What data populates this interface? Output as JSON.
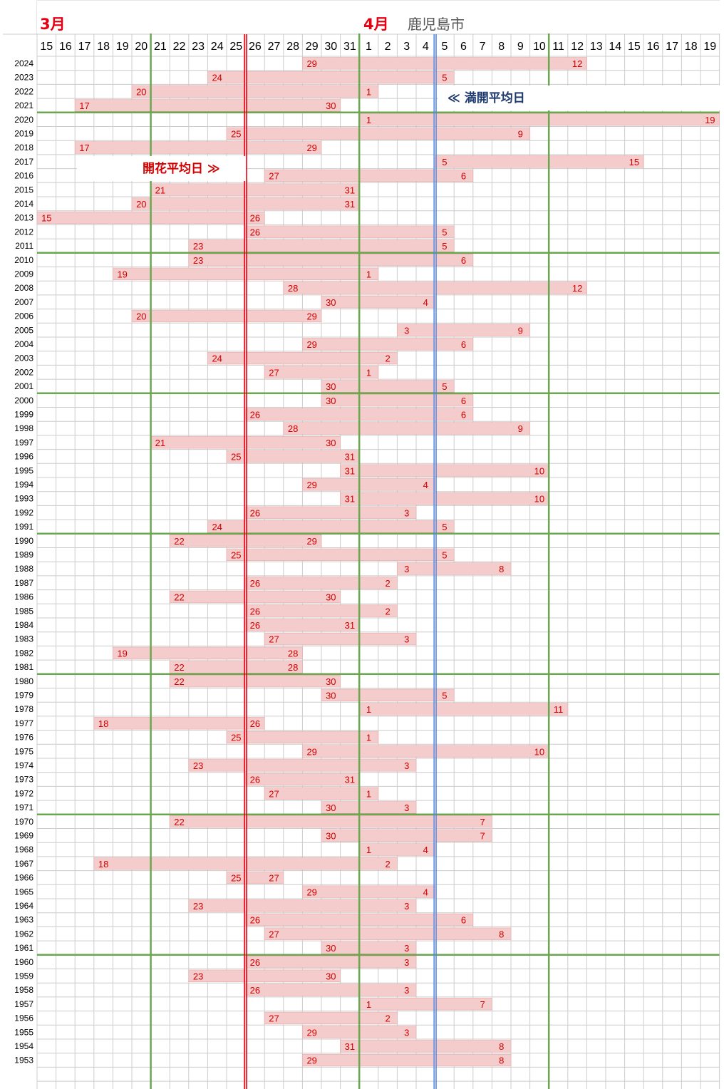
{
  "header": {
    "march_label": "3月",
    "april_label": "4月",
    "city": "鹿児島市"
  },
  "annotations": {
    "bloom_average": "開花平均日 ≫",
    "full_bloom_average": "≪ 満開平均日"
  },
  "colors": {
    "bar_fill": "#f4cccc",
    "bar_stroke": "#e8a8a8",
    "value_text": "#d00000",
    "decade_line": "#6aa84f",
    "bloom_avg_line": "#e60012",
    "full_avg_line": "#4a86e8",
    "grid": "#cccccc"
  },
  "chart_data": {
    "type": "range-bar",
    "x_axis": {
      "ticks": [
        {
          "month": "3月",
          "day": "15"
        },
        {
          "month": "3月",
          "day": "16"
        },
        {
          "month": "3月",
          "day": "17"
        },
        {
          "month": "3月",
          "day": "18"
        },
        {
          "month": "3月",
          "day": "19"
        },
        {
          "month": "3月",
          "day": "20"
        },
        {
          "month": "3月",
          "day": "21"
        },
        {
          "month": "3月",
          "day": "22"
        },
        {
          "month": "3月",
          "day": "23"
        },
        {
          "month": "3月",
          "day": "24"
        },
        {
          "month": "3月",
          "day": "25"
        },
        {
          "month": "3月",
          "day": "26"
        },
        {
          "month": "3月",
          "day": "27"
        },
        {
          "month": "3月",
          "day": "28"
        },
        {
          "month": "3月",
          "day": "29"
        },
        {
          "month": "3月",
          "day": "30"
        },
        {
          "month": "3月",
          "day": "31"
        },
        {
          "month": "4月",
          "day": "1"
        },
        {
          "month": "4月",
          "day": "2"
        },
        {
          "month": "4月",
          "day": "3"
        },
        {
          "month": "4月",
          "day": "4"
        },
        {
          "month": "4月",
          "day": "5"
        },
        {
          "month": "4月",
          "day": "6"
        },
        {
          "month": "4月",
          "day": "7"
        },
        {
          "month": "4月",
          "day": "8"
        },
        {
          "month": "4月",
          "day": "9"
        },
        {
          "month": "4月",
          "day": "10"
        },
        {
          "month": "4月",
          "day": "11"
        },
        {
          "month": "4月",
          "day": "12"
        },
        {
          "month": "4月",
          "day": "13"
        },
        {
          "month": "4月",
          "day": "14"
        },
        {
          "month": "4月",
          "day": "15"
        },
        {
          "month": "4月",
          "day": "16"
        },
        {
          "month": "4月",
          "day": "17"
        },
        {
          "month": "4月",
          "day": "18"
        },
        {
          "month": "4月",
          "day": "19"
        }
      ]
    },
    "reference_lines": {
      "bloom_average": {
        "month": 3,
        "day": 25.5
      },
      "full_bloom_average": {
        "month": 4,
        "day": 4.5
      }
    },
    "decade_lines_after_years": [
      2021,
      2011,
      2001,
      1991,
      1981,
      1971,
      1961
    ],
    "series": [
      {
        "year": "2024",
        "bloom": [
          3,
          29
        ],
        "full": [
          4,
          12
        ]
      },
      {
        "year": "2023",
        "bloom": [
          3,
          24
        ],
        "full": [
          4,
          5
        ]
      },
      {
        "year": "2022",
        "bloom": [
          3,
          20
        ],
        "full": [
          4,
          1
        ]
      },
      {
        "year": "2021",
        "bloom": [
          3,
          17
        ],
        "full": [
          3,
          30
        ]
      },
      {
        "year": "2020",
        "bloom": [
          4,
          1
        ],
        "full": [
          4,
          19
        ]
      },
      {
        "year": "2019",
        "bloom": [
          3,
          25
        ],
        "full": [
          4,
          9
        ]
      },
      {
        "year": "2018",
        "bloom": [
          3,
          17
        ],
        "full": [
          3,
          29
        ]
      },
      {
        "year": "2017",
        "bloom": [
          4,
          5
        ],
        "full": [
          4,
          15
        ]
      },
      {
        "year": "2016",
        "bloom": [
          3,
          27
        ],
        "full": [
          4,
          6
        ]
      },
      {
        "year": "2015",
        "bloom": [
          3,
          21
        ],
        "full": [
          3,
          31
        ]
      },
      {
        "year": "2014",
        "bloom": [
          3,
          20
        ],
        "full": [
          3,
          31
        ]
      },
      {
        "year": "2013",
        "bloom": [
          3,
          15
        ],
        "full": [
          3,
          26
        ]
      },
      {
        "year": "2012",
        "bloom": [
          3,
          26
        ],
        "full": [
          4,
          5
        ]
      },
      {
        "year": "2011",
        "bloom": [
          3,
          23
        ],
        "full": [
          4,
          5
        ]
      },
      {
        "year": "2010",
        "bloom": [
          3,
          23
        ],
        "full": [
          4,
          6
        ]
      },
      {
        "year": "2009",
        "bloom": [
          3,
          19
        ],
        "full": [
          4,
          1
        ]
      },
      {
        "year": "2008",
        "bloom": [
          3,
          28
        ],
        "full": [
          4,
          12
        ]
      },
      {
        "year": "2007",
        "bloom": [
          3,
          30
        ],
        "full": [
          4,
          4
        ]
      },
      {
        "year": "2006",
        "bloom": [
          3,
          20
        ],
        "full": [
          3,
          29
        ]
      },
      {
        "year": "2005",
        "bloom": [
          4,
          3
        ],
        "full": [
          4,
          9
        ]
      },
      {
        "year": "2004",
        "bloom": [
          3,
          29
        ],
        "full": [
          4,
          6
        ]
      },
      {
        "year": "2003",
        "bloom": [
          3,
          24
        ],
        "full": [
          4,
          2
        ]
      },
      {
        "year": "2002",
        "bloom": [
          3,
          27
        ],
        "full": [
          4,
          1
        ]
      },
      {
        "year": "2001",
        "bloom": [
          3,
          30
        ],
        "full": [
          4,
          5
        ]
      },
      {
        "year": "2000",
        "bloom": [
          3,
          30
        ],
        "full": [
          4,
          6
        ]
      },
      {
        "year": "1999",
        "bloom": [
          3,
          26
        ],
        "full": [
          4,
          6
        ]
      },
      {
        "year": "1998",
        "bloom": [
          3,
          28
        ],
        "full": [
          4,
          9
        ]
      },
      {
        "year": "1997",
        "bloom": [
          3,
          21
        ],
        "full": [
          3,
          30
        ]
      },
      {
        "year": "1996",
        "bloom": [
          3,
          25
        ],
        "full": [
          3,
          31
        ]
      },
      {
        "year": "1995",
        "bloom": [
          3,
          31
        ],
        "full": [
          4,
          10
        ]
      },
      {
        "year": "1994",
        "bloom": [
          3,
          29
        ],
        "full": [
          4,
          4
        ]
      },
      {
        "year": "1993",
        "bloom": [
          3,
          31
        ],
        "full": [
          4,
          10
        ]
      },
      {
        "year": "1992",
        "bloom": [
          3,
          26
        ],
        "full": [
          4,
          3
        ]
      },
      {
        "year": "1991",
        "bloom": [
          3,
          24
        ],
        "full": [
          4,
          5
        ]
      },
      {
        "year": "1990",
        "bloom": [
          3,
          22
        ],
        "full": [
          3,
          29
        ]
      },
      {
        "year": "1989",
        "bloom": [
          3,
          25
        ],
        "full": [
          4,
          5
        ]
      },
      {
        "year": "1988",
        "bloom": [
          4,
          3
        ],
        "full": [
          4,
          8
        ]
      },
      {
        "year": "1987",
        "bloom": [
          3,
          26
        ],
        "full": [
          4,
          2
        ]
      },
      {
        "year": "1986",
        "bloom": [
          3,
          22
        ],
        "full": [
          3,
          30
        ]
      },
      {
        "year": "1985",
        "bloom": [
          3,
          26
        ],
        "full": [
          4,
          2
        ]
      },
      {
        "year": "1984",
        "bloom": [
          3,
          26
        ],
        "full": [
          3,
          31
        ]
      },
      {
        "year": "1983",
        "bloom": [
          3,
          27
        ],
        "full": [
          4,
          3
        ]
      },
      {
        "year": "1982",
        "bloom": [
          3,
          19
        ],
        "full": [
          3,
          28
        ]
      },
      {
        "year": "1981",
        "bloom": [
          3,
          22
        ],
        "full": [
          3,
          28
        ]
      },
      {
        "year": "1980",
        "bloom": [
          3,
          22
        ],
        "full": [
          3,
          30
        ]
      },
      {
        "year": "1979",
        "bloom": [
          3,
          30
        ],
        "full": [
          4,
          5
        ]
      },
      {
        "year": "1978",
        "bloom": [
          4,
          1
        ],
        "full": [
          4,
          11
        ]
      },
      {
        "year": "1977",
        "bloom": [
          3,
          18
        ],
        "full": [
          3,
          26
        ]
      },
      {
        "year": "1976",
        "bloom": [
          3,
          25
        ],
        "full": [
          4,
          1
        ]
      },
      {
        "year": "1975",
        "bloom": [
          3,
          29
        ],
        "full": [
          4,
          10
        ]
      },
      {
        "year": "1974",
        "bloom": [
          3,
          23
        ],
        "full": [
          4,
          3
        ]
      },
      {
        "year": "1973",
        "bloom": [
          3,
          26
        ],
        "full": [
          3,
          31
        ]
      },
      {
        "year": "1972",
        "bloom": [
          3,
          27
        ],
        "full": [
          4,
          1
        ]
      },
      {
        "year": "1971",
        "bloom": [
          3,
          30
        ],
        "full": [
          4,
          3
        ]
      },
      {
        "year": "1970",
        "bloom": [
          3,
          22
        ],
        "full": [
          4,
          7
        ]
      },
      {
        "year": "1969",
        "bloom": [
          3,
          30
        ],
        "full": [
          4,
          7
        ]
      },
      {
        "year": "1968",
        "bloom": [
          4,
          1
        ],
        "full": [
          4,
          4
        ]
      },
      {
        "year": "1967",
        "bloom": [
          3,
          18
        ],
        "full": [
          4,
          2
        ]
      },
      {
        "year": "1966",
        "bloom": [
          3,
          25
        ],
        "full": [
          3,
          27
        ]
      },
      {
        "year": "1965",
        "bloom": [
          3,
          29
        ],
        "full": [
          4,
          4
        ]
      },
      {
        "year": "1964",
        "bloom": [
          3,
          23
        ],
        "full": [
          4,
          3
        ]
      },
      {
        "year": "1963",
        "bloom": [
          3,
          26
        ],
        "full": [
          4,
          6
        ]
      },
      {
        "year": "1962",
        "bloom": [
          3,
          27
        ],
        "full": [
          4,
          8
        ]
      },
      {
        "year": "1961",
        "bloom": [
          3,
          30
        ],
        "full": [
          4,
          3
        ]
      },
      {
        "year": "1960",
        "bloom": [
          3,
          26
        ],
        "full": [
          4,
          3
        ]
      },
      {
        "year": "1959",
        "bloom": [
          3,
          23
        ],
        "full": [
          3,
          30
        ]
      },
      {
        "year": "1958",
        "bloom": [
          3,
          26
        ],
        "full": [
          4,
          3
        ]
      },
      {
        "year": "1957",
        "bloom": [
          4,
          1
        ],
        "full": [
          4,
          7
        ]
      },
      {
        "year": "1956",
        "bloom": [
          3,
          27
        ],
        "full": [
          4,
          2
        ]
      },
      {
        "year": "1955",
        "bloom": [
          3,
          29
        ],
        "full": [
          4,
          3
        ]
      },
      {
        "year": "1954",
        "bloom": [
          3,
          31
        ],
        "full": [
          4,
          8
        ]
      },
      {
        "year": "1953",
        "bloom": [
          3,
          29
        ],
        "full": [
          4,
          8
        ]
      }
    ]
  }
}
